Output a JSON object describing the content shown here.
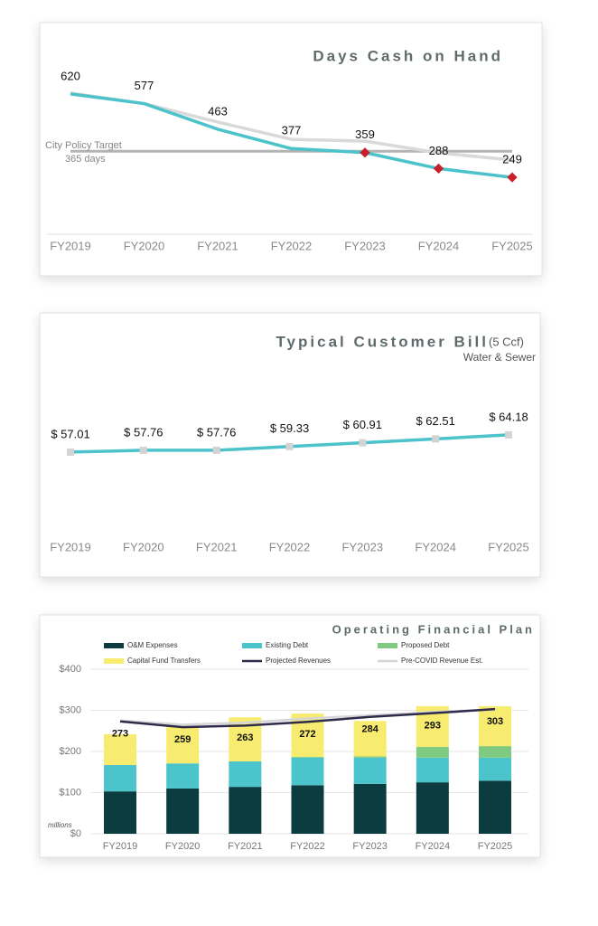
{
  "chart_data": [
    {
      "type": "line",
      "title": "Days Cash on Hand",
      "categories": [
        "FY2019",
        "FY2020",
        "FY2021",
        "FY2022",
        "FY2023",
        "FY2024",
        "FY2025"
      ],
      "series": [
        {
          "color": "#d9d9d9",
          "values": [
            624,
            577,
            495,
            418,
            410,
            358,
            326
          ]
        },
        {
          "color": "#4cc3ca",
          "values": [
            620,
            577,
            463,
            377,
            359,
            288,
            249
          ],
          "labels": true
        }
      ],
      "reference_line": {
        "value": 365,
        "label": [
          "City Policy Target",
          "365 days"
        ],
        "color": "#b3b3b3"
      },
      "below_target_marker_color": "#c8202a",
      "ylim": [
        0,
        720
      ]
    },
    {
      "type": "line",
      "title": "Typical Customer Bill",
      "subtitle": [
        "(5 Ccf)",
        "Water & Sewer"
      ],
      "categories": [
        "FY2019",
        "FY2020",
        "FY2021",
        "FY2022",
        "FY2023",
        "FY2024",
        "FY2025"
      ],
      "series": [
        {
          "color": "#4cc3ca",
          "marker_color": "#d3d3d3",
          "labels": true,
          "values": [
            57.01,
            57.76,
            57.76,
            59.33,
            60.91,
            62.51,
            64.18
          ],
          "value_labels": [
            "$ 57.01",
            "$ 57.76",
            "$ 57.76",
            "$ 59.33",
            "$ 60.91",
            "$ 62.51",
            "$ 64.18"
          ]
        }
      ],
      "ylim": [
        20,
        80
      ]
    },
    {
      "type": "bar",
      "stacked": true,
      "title": "Operating Financial Plan",
      "y_unit_label": "millions",
      "categories": [
        "FY2019",
        "FY2020",
        "FY2021",
        "FY2022",
        "FY2023",
        "FY2024",
        "FY2025"
      ],
      "series": [
        {
          "name": "O&M Expenses",
          "type": "bar",
          "color": "#0b3d40",
          "values": [
            103,
            110,
            114,
            118,
            121,
            125,
            129
          ]
        },
        {
          "name": "Existing Debt",
          "type": "bar",
          "color": "#4cc4cc",
          "values": [
            64,
            61,
            62,
            67,
            64,
            60,
            56
          ]
        },
        {
          "name": "Proposed Debt",
          "type": "bar",
          "color": "#80c980",
          "values": [
            0,
            0,
            0,
            2,
            3,
            26,
            28
          ]
        },
        {
          "name": "Capital Fund Transfers",
          "type": "bar",
          "color": "#f7ec6f",
          "values": [
            75,
            90,
            107,
            105,
            86,
            99,
            97
          ]
        },
        {
          "name": "Projected Revenues",
          "type": "line",
          "color": "#2e2b4b",
          "labels": true,
          "values": [
            273,
            259,
            263,
            272,
            284,
            293,
            303
          ]
        },
        {
          "name": "Pre-COVID Revenue Est.",
          "type": "line",
          "color": "#d6d6d6",
          "values": [
            275,
            265,
            270,
            280,
            288,
            296,
            302
          ]
        }
      ],
      "ylim": [
        0,
        400
      ],
      "yticks": [
        {
          "value": 0,
          "label": "$0"
        },
        {
          "value": 100,
          "label": "$100"
        },
        {
          "value": 200,
          "label": "$200"
        },
        {
          "value": 300,
          "label": "$300"
        },
        {
          "value": 400,
          "label": "$400"
        }
      ],
      "grid": true
    }
  ]
}
